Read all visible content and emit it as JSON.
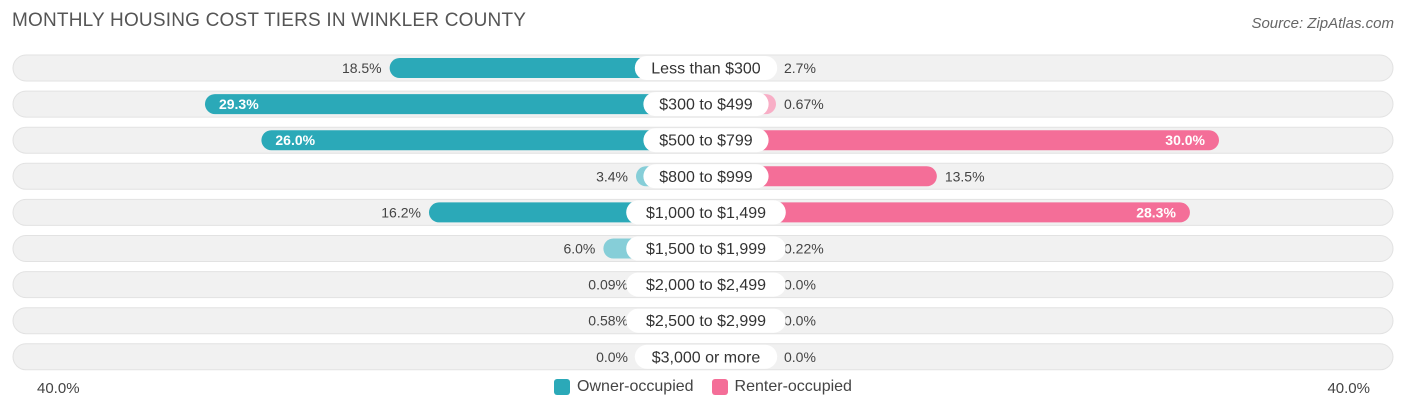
{
  "title": "MONTHLY HOUSING COST TIERS IN WINKLER COUNTY",
  "source": "Source: ZipAtlas.com",
  "colors": {
    "owner": "#2BA9B8",
    "owner_light": "#86CED8",
    "renter": "#F46E98",
    "renter_light": "#F8AEC6",
    "track": "#F0F0F0"
  },
  "legend": {
    "owner_label": "Owner-occupied",
    "renter_label": "Renter-occupied"
  },
  "axis": {
    "left_label": "40.0%",
    "right_label": "40.0%"
  },
  "chart_data": {
    "type": "bar",
    "orientation": "horizontal-diverging",
    "categories": [
      "Less than $300",
      "$300 to $499",
      "$500 to $799",
      "$800 to $999",
      "$1,000 to $1,499",
      "$1,500 to $1,999",
      "$2,000 to $2,499",
      "$2,500 to $2,999",
      "$3,000 or more"
    ],
    "series": [
      {
        "name": "Owner-occupied",
        "values": [
          18.5,
          29.3,
          26.0,
          3.4,
          16.2,
          6.0,
          0.09,
          0.58,
          0.0
        ],
        "labels": [
          "18.5%",
          "29.3%",
          "26.0%",
          "3.4%",
          "16.2%",
          "6.0%",
          "0.09%",
          "0.58%",
          "0.0%"
        ]
      },
      {
        "name": "Renter-occupied",
        "values": [
          2.7,
          0.67,
          30.0,
          13.5,
          28.3,
          0.22,
          0.0,
          0.0,
          0.0
        ],
        "labels": [
          "2.7%",
          "0.67%",
          "30.0%",
          "13.5%",
          "28.3%",
          "0.22%",
          "0.0%",
          "0.0%",
          "0.0%"
        ]
      }
    ],
    "xlim": [
      -40,
      40
    ],
    "legend_position": "bottom-center"
  }
}
